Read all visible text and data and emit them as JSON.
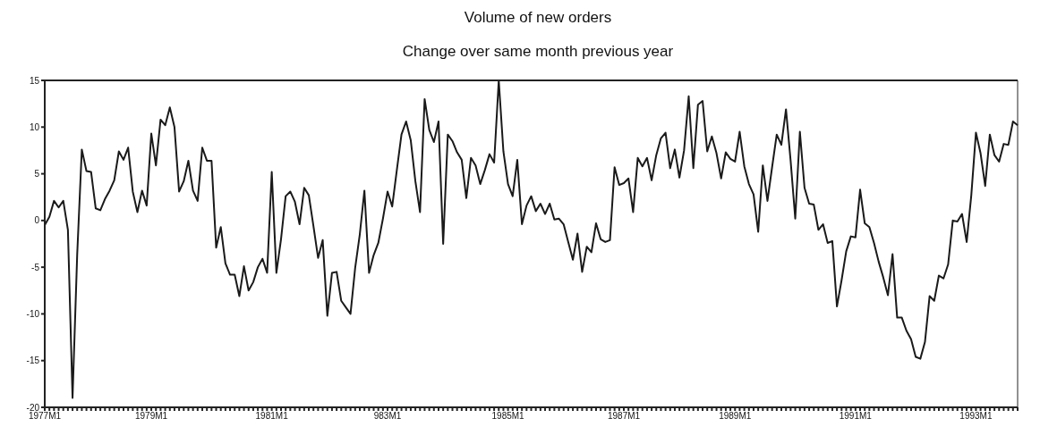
{
  "chart_data": {
    "type": "line",
    "title": "Volume of new orders",
    "subtitle": "Change over same month previous year",
    "color": "#1a1a1a",
    "categories": [
      "1977M1",
      null,
      null,
      null,
      null,
      null,
      null,
      null,
      null,
      null,
      null,
      null,
      null,
      null,
      null,
      null,
      null,
      null,
      null,
      null,
      null,
      null,
      null,
      "1979M1",
      null,
      null,
      null,
      null,
      null,
      null,
      null,
      null,
      null,
      null,
      null,
      null,
      null,
      null,
      null,
      null,
      null,
      null,
      null,
      null,
      null,
      null,
      null,
      null,
      null,
      "1981M1",
      null,
      null,
      null,
      null,
      null,
      null,
      null,
      null,
      null,
      null,
      null,
      null,
      null,
      null,
      null,
      null,
      null,
      null,
      null,
      null,
      null,
      null,
      null,
      null,
      "983M1",
      null,
      null,
      null,
      null,
      null,
      null,
      null,
      null,
      null,
      null,
      null,
      null,
      null,
      null,
      null,
      null,
      null,
      null,
      null,
      null,
      null,
      null,
      null,
      null,
      null,
      "1985M1",
      null,
      null,
      null,
      null,
      null,
      null,
      null,
      null,
      null,
      null,
      null,
      null,
      null,
      null,
      null,
      null,
      null,
      null,
      null,
      null,
      null,
      null,
      null,
      null,
      "1987M1",
      null,
      null,
      null,
      null,
      null,
      null,
      null,
      null,
      null,
      null,
      null,
      null,
      null,
      null,
      null,
      null,
      null,
      null,
      null,
      null,
      null,
      null,
      null,
      "1989M1",
      null,
      null,
      null,
      null,
      null,
      null,
      null,
      null,
      null,
      null,
      null,
      null,
      null,
      null,
      null,
      null,
      null,
      null,
      null,
      null,
      null,
      null,
      null,
      null,
      null,
      "1991M1",
      null,
      null,
      null,
      null,
      null,
      null,
      null,
      null,
      null,
      null,
      null,
      null,
      null,
      null,
      null,
      null,
      null,
      null,
      null,
      null,
      null,
      null,
      null,
      null,
      null,
      "1993M1",
      null,
      null,
      null,
      null,
      null,
      null,
      null,
      null,
      null
    ],
    "values": [
      -0.5,
      0.4,
      2.1,
      1.4,
      2.1,
      -1.0,
      -19.0,
      -3.7,
      7.6,
      5.3,
      5.2,
      1.3,
      1.1,
      2.3,
      3.2,
      4.3,
      7.4,
      6.5,
      7.8,
      3.1,
      0.9,
      3.2,
      1.6,
      9.3,
      5.9,
      10.8,
      10.2,
      12.1,
      10.0,
      3.1,
      4.2,
      6.4,
      3.2,
      2.1,
      7.8,
      6.4,
      6.4,
      -2.9,
      -0.7,
      -4.6,
      -5.8,
      -5.8,
      -8.1,
      -4.9,
      -7.5,
      -6.6,
      -5.0,
      -4.1,
      -5.6,
      5.2,
      -5.6,
      -2.0,
      2.6,
      3.1,
      2.0,
      -0.4,
      3.5,
      2.7,
      -0.6,
      -4.0,
      -2.1,
      -10.2,
      -5.6,
      -5.5,
      -8.6,
      -9.3,
      -10.0,
      -5.1,
      -1.5,
      3.2,
      -5.6,
      -3.7,
      -2.4,
      0.2,
      3.1,
      1.5,
      5.4,
      9.2,
      10.6,
      8.6,
      4.2,
      0.9,
      13.0,
      9.7,
      8.4,
      10.6,
      -2.5,
      9.2,
      8.5,
      7.3,
      6.5,
      2.4,
      6.7,
      5.9,
      3.9,
      5.4,
      7.1,
      6.2,
      15.0,
      7.4,
      3.9,
      2.6,
      6.5,
      -0.4,
      1.6,
      2.6,
      1.0,
      1.8,
      0.7,
      1.8,
      0.1,
      0.2,
      -0.4,
      -2.3,
      -4.2,
      -1.4,
      -5.5,
      -2.8,
      -3.4,
      -0.3,
      -2.0,
      -2.3,
      -2.1,
      5.7,
      3.8,
      4.0,
      4.5,
      0.9,
      6.7,
      5.8,
      6.7,
      4.3,
      7.0,
      8.8,
      9.4,
      5.6,
      7.6,
      4.6,
      7.5,
      13.3,
      5.6,
      12.4,
      12.8,
      7.4,
      9.0,
      7.2,
      4.5,
      7.3,
      6.6,
      6.3,
      9.5,
      5.8,
      3.9,
      2.8,
      -1.2,
      5.9,
      2.1,
      5.7,
      9.2,
      8.1,
      11.9,
      6.4,
      0.2,
      9.5,
      3.5,
      1.8,
      1.7,
      -1.0,
      -0.4,
      -2.4,
      -2.2,
      -9.2,
      -6.4,
      -3.3,
      -1.7,
      -1.8,
      3.3,
      -0.3,
      -0.7,
      -2.4,
      -4.4,
      -6.1,
      -8.0,
      -3.6,
      -10.4,
      -10.4,
      -11.8,
      -12.7,
      -14.6,
      -14.8,
      -13.0,
      -8.1,
      -8.6,
      -5.9,
      -6.2,
      -4.7,
      0.0,
      -0.1,
      0.7,
      -2.3,
      2.7,
      9.4,
      7.2,
      3.7,
      9.2,
      7.0,
      6.3,
      8.2,
      8.1,
      10.6,
      10.2
    ],
    "ylim": [
      -20,
      15
    ],
    "yticks": [
      -20,
      -15,
      -10,
      -5,
      0,
      5,
      10,
      15
    ]
  }
}
